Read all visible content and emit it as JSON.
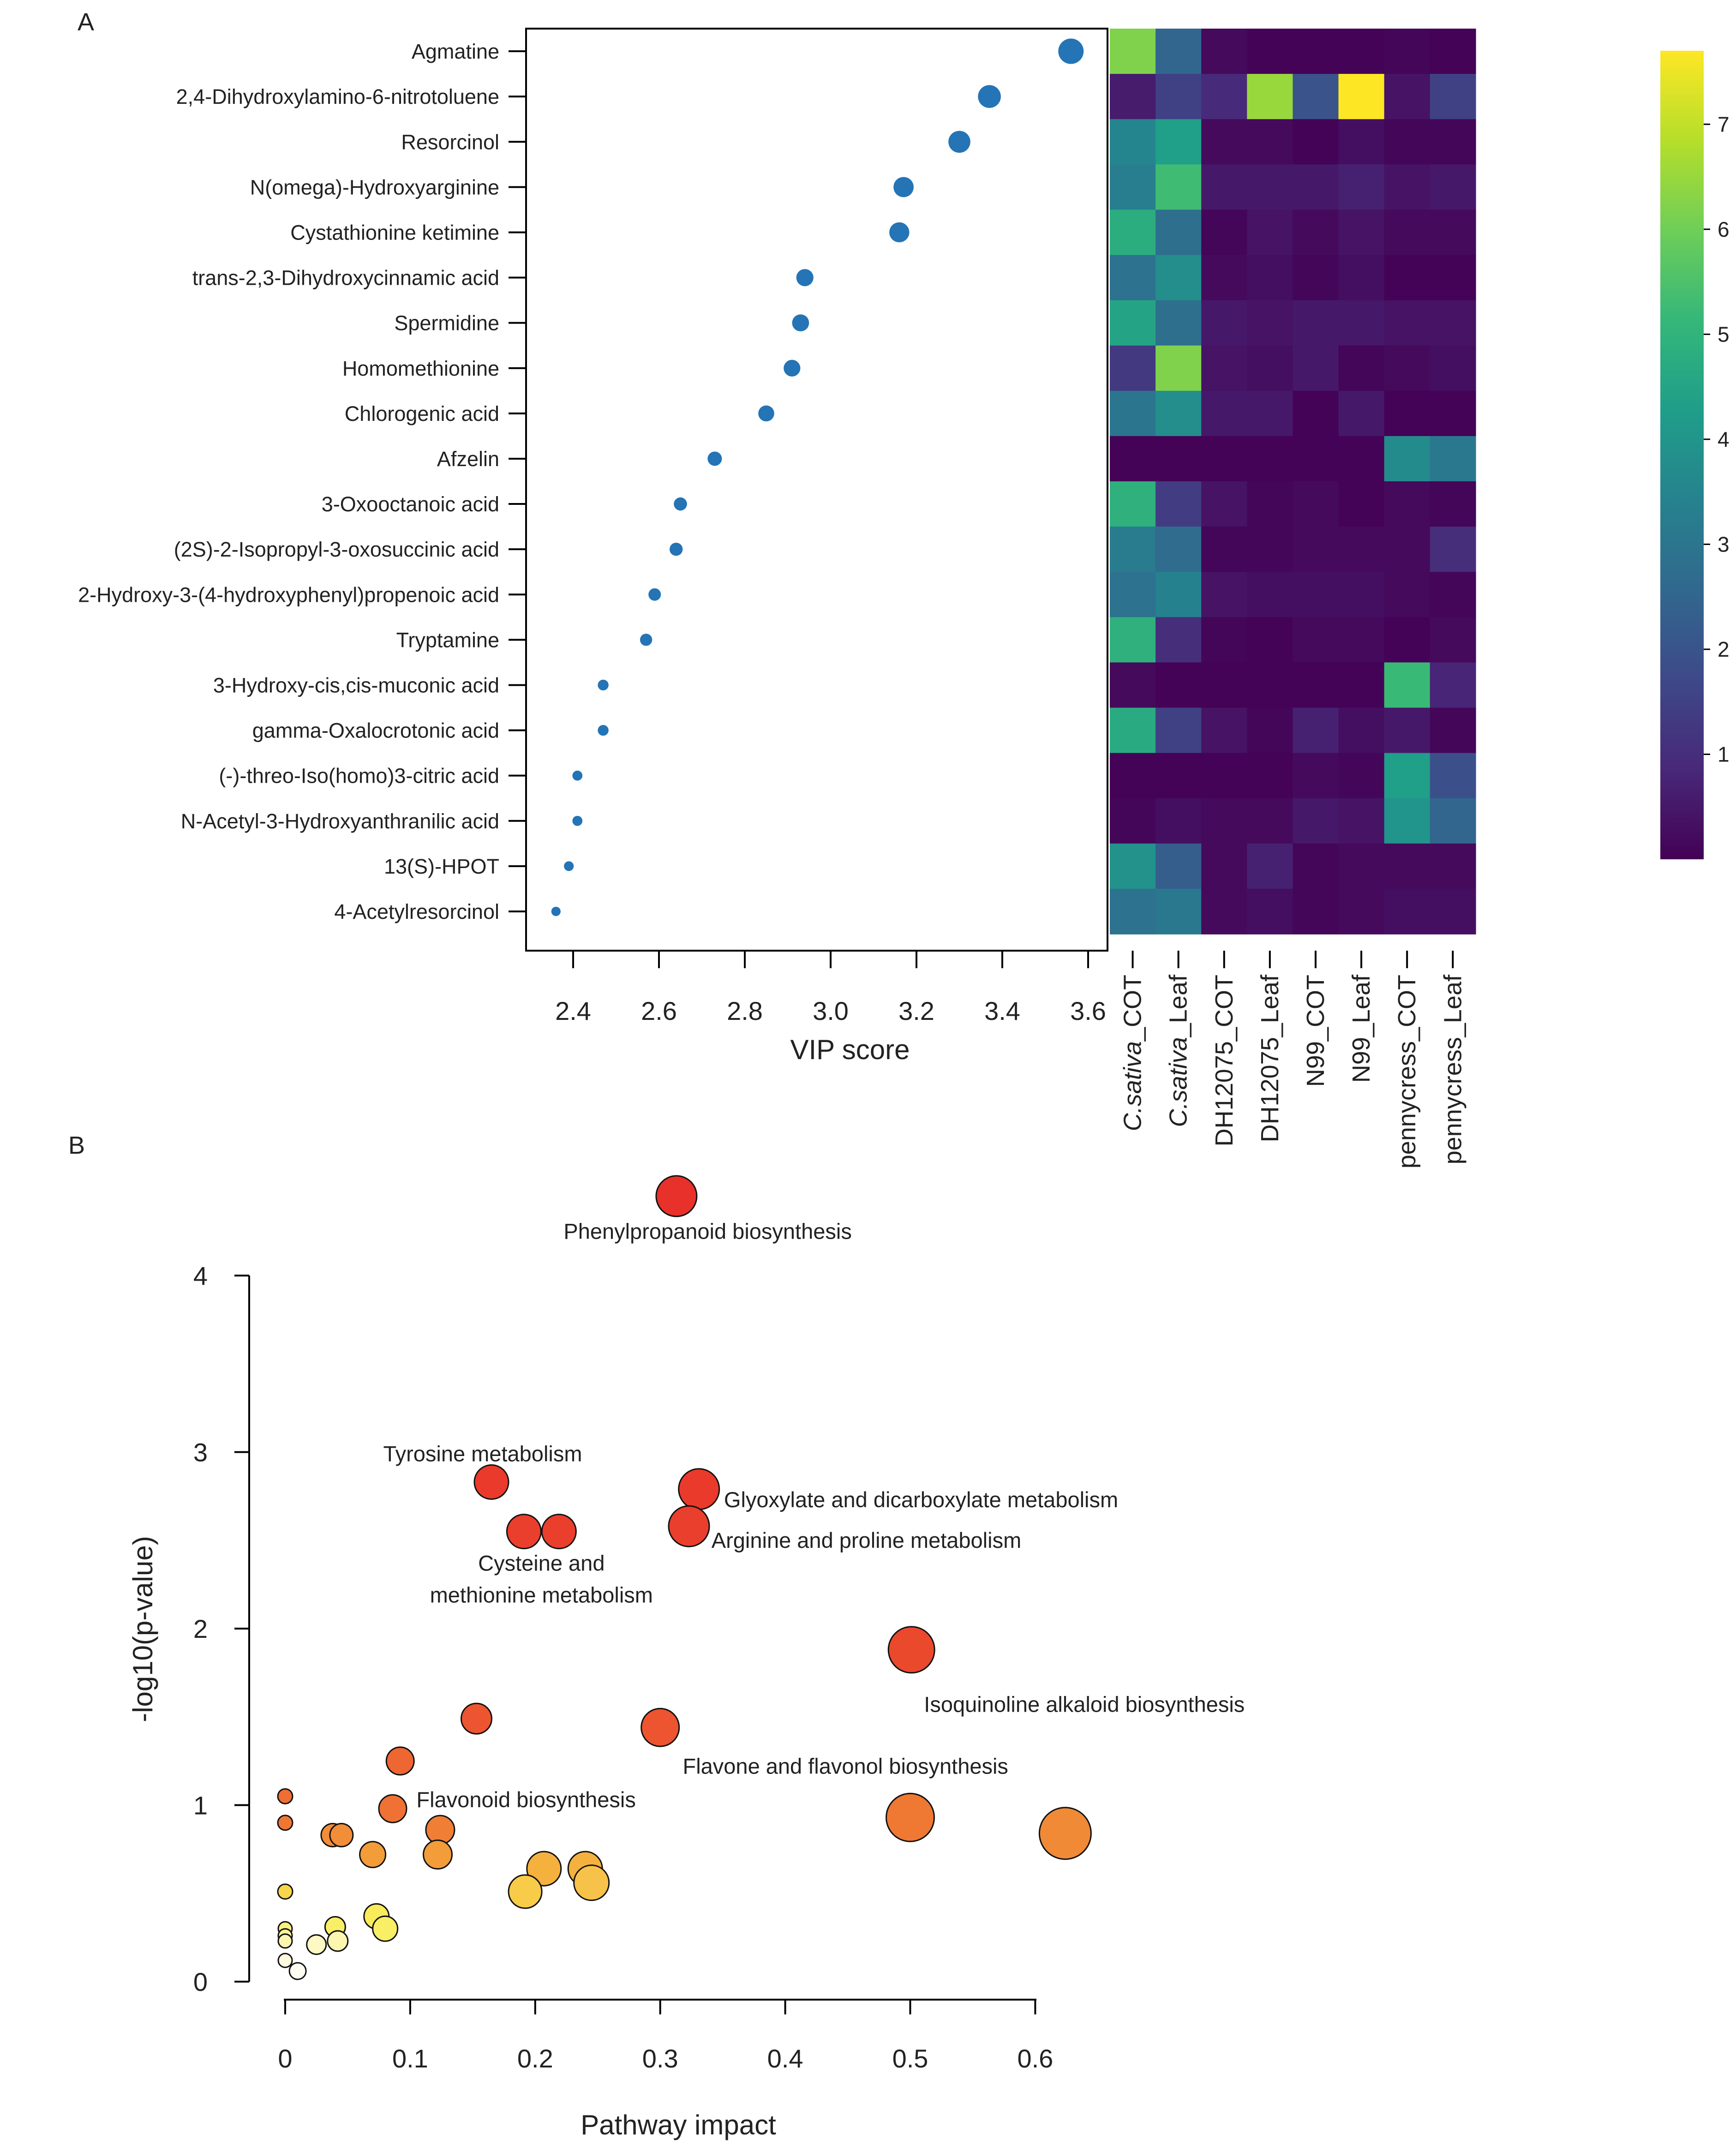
{
  "chart_data": [
    {
      "panel": "A",
      "type": "scatter",
      "subtype": "VIP score dot plot",
      "xlabel": "VIP score",
      "xticks": [
        "2.4",
        "2.6",
        "2.8",
        "3.0",
        "3.2",
        "3.4",
        "3.6"
      ],
      "xlim": [
        2.32,
        3.62
      ],
      "metabolites": [
        {
          "name": "Agmatine",
          "vip": 3.56
        },
        {
          "name": "2,4-Dihydroxylamino-6-nitrotoluene",
          "vip": 3.37
        },
        {
          "name": "Resorcinol",
          "vip": 3.3
        },
        {
          "name": "N(omega)-Hydroxyarginine",
          "vip": 3.17
        },
        {
          "name": "Cystathionine ketimine",
          "vip": 3.16
        },
        {
          "name": "trans-2,3-Dihydroxycinnamic acid",
          "vip": 2.94
        },
        {
          "name": "Spermidine",
          "vip": 2.93
        },
        {
          "name": "Homomethionine",
          "vip": 2.91
        },
        {
          "name": "Chlorogenic acid",
          "vip": 2.85
        },
        {
          "name": "Afzelin",
          "vip": 2.73
        },
        {
          "name": "3-Oxooctanoic acid",
          "vip": 2.65
        },
        {
          "name": "(2S)-2-Isopropyl-3-oxosuccinic acid",
          "vip": 2.64
        },
        {
          "name": "2-Hydroxy-3-(4-hydroxyphenyl)propenoic acid",
          "vip": 2.59
        },
        {
          "name": "Tryptamine",
          "vip": 2.57
        },
        {
          "name": "3-Hydroxy-cis,cis-muconic acid",
          "vip": 2.47
        },
        {
          "name": "gamma-Oxalocrotonic acid",
          "vip": 2.47
        },
        {
          "name": "(-)-threo-Iso(homo)3-citric acid",
          "vip": 2.41
        },
        {
          "name": "N-Acetyl-3-Hydroxyanthranilic acid",
          "vip": 2.41
        },
        {
          "name": "13(S)-HPOT",
          "vip": 2.39
        },
        {
          "name": "4-Acetylresorcinol",
          "vip": 2.36
        }
      ]
    },
    {
      "panel": "A",
      "type": "heatmap",
      "columns": [
        "C.sativa_COT",
        "C.sativa_Leaf",
        "DH12075_COT",
        "DH12075_Leaf",
        "N99_COT",
        "N99_Leaf",
        "pennycress_COT",
        "pennycress_Leaf"
      ],
      "columns_italic_prefix": [
        "C.sativa",
        "C.sativa",
        "",
        "",
        "",
        "",
        "",
        ""
      ],
      "columns_suffix": [
        "_COT",
        "_Leaf",
        "DH12075_COT",
        "DH12075_Leaf",
        "N99_COT",
        "N99_Leaf",
        "pennycress_COT",
        "pennycress_Leaf"
      ],
      "colorbar_ticks": [
        "1",
        "2",
        "3",
        "4",
        "5",
        "6",
        "7"
      ],
      "colorbar_range": [
        0,
        7.7
      ],
      "colormap": [
        "#440154",
        "#482878",
        "#3e4989",
        "#31688e",
        "#26828e",
        "#1f9e89",
        "#35b779",
        "#6ece58",
        "#b5de2b",
        "#fde725"
      ],
      "values": [
        [
          6.2,
          2.5,
          0.2,
          0.05,
          0.05,
          0.05,
          0.1,
          0.05
        ],
        [
          0.6,
          1.5,
          0.9,
          6.5,
          2.0,
          7.7,
          0.4,
          1.5
        ],
        [
          3.5,
          4.3,
          0.2,
          0.2,
          0.05,
          0.3,
          0.1,
          0.1
        ],
        [
          3.3,
          5.3,
          0.5,
          0.5,
          0.5,
          0.7,
          0.4,
          0.5
        ],
        [
          4.8,
          2.8,
          0.1,
          0.4,
          0.2,
          0.4,
          0.2,
          0.2
        ],
        [
          2.9,
          3.8,
          0.2,
          0.3,
          0.1,
          0.3,
          0.05,
          0.05
        ],
        [
          4.5,
          2.8,
          0.5,
          0.4,
          0.5,
          0.5,
          0.4,
          0.4
        ],
        [
          1.3,
          6.2,
          0.4,
          0.3,
          0.5,
          0.1,
          0.2,
          0.3
        ],
        [
          3.0,
          3.8,
          0.5,
          0.5,
          0.05,
          0.5,
          0.05,
          0.05
        ],
        [
          0.05,
          0.05,
          0.05,
          0.05,
          0.05,
          0.05,
          3.7,
          3.1
        ],
        [
          4.9,
          1.4,
          0.4,
          0.1,
          0.2,
          0.05,
          0.2,
          0.1
        ],
        [
          3.2,
          2.7,
          0.1,
          0.1,
          0.2,
          0.2,
          0.2,
          1.0
        ],
        [
          2.9,
          3.4,
          0.4,
          0.3,
          0.3,
          0.3,
          0.2,
          0.1
        ],
        [
          4.9,
          1.0,
          0.1,
          0.05,
          0.2,
          0.2,
          0.05,
          0.2
        ],
        [
          0.2,
          0.05,
          0.05,
          0.05,
          0.05,
          0.05,
          5.2,
          0.8
        ],
        [
          4.7,
          1.5,
          0.4,
          0.1,
          0.7,
          0.3,
          0.5,
          0.1
        ],
        [
          0.05,
          0.05,
          0.05,
          0.05,
          0.2,
          0.1,
          4.3,
          1.9
        ],
        [
          0.1,
          0.3,
          0.2,
          0.2,
          0.5,
          0.4,
          4.0,
          2.5
        ],
        [
          3.9,
          2.3,
          0.2,
          0.7,
          0.1,
          0.2,
          0.2,
          0.2
        ],
        [
          2.9,
          3.1,
          0.2,
          0.3,
          0.1,
          0.2,
          0.3,
          0.3
        ]
      ]
    },
    {
      "panel": "B",
      "type": "scatter",
      "subtype": "pathway bubble plot",
      "xlabel": "Pathway impact",
      "ylabel": "-log10(p-value)",
      "xticks": [
        "0",
        "0.1",
        "0.2",
        "0.3",
        "0.4",
        "0.5",
        "0.6"
      ],
      "yticks": [
        "0",
        "1",
        "2",
        "3",
        "4"
      ],
      "xlim": [
        0,
        0.6
      ],
      "ylim": [
        0,
        4
      ],
      "points": [
        {
          "x": 0.313,
          "y": 4.45,
          "r": 44,
          "color": "#e8312a"
        },
        {
          "x": 0.165,
          "y": 2.83,
          "r": 37,
          "color": "#e93a2b"
        },
        {
          "x": 0.331,
          "y": 2.79,
          "r": 44,
          "color": "#e93a2b"
        },
        {
          "x": 0.191,
          "y": 2.55,
          "r": 37,
          "color": "#ea3f2c"
        },
        {
          "x": 0.219,
          "y": 2.55,
          "r": 37,
          "color": "#ea3f2c"
        },
        {
          "x": 0.323,
          "y": 2.58,
          "r": 44,
          "color": "#ea3f2c"
        },
        {
          "x": 0.501,
          "y": 1.88,
          "r": 50,
          "color": "#ea492c"
        },
        {
          "x": 0.153,
          "y": 1.49,
          "r": 33,
          "color": "#ec5530"
        },
        {
          "x": 0.3,
          "y": 1.44,
          "r": 41,
          "color": "#ec5530"
        },
        {
          "x": 0.092,
          "y": 1.25,
          "r": 30,
          "color": "#ee6632"
        },
        {
          "x": 0.0,
          "y": 1.05,
          "r": 16,
          "color": "#ee6e33"
        },
        {
          "x": 0.0,
          "y": 0.9,
          "r": 16,
          "color": "#ef7734"
        },
        {
          "x": 0.086,
          "y": 0.98,
          "r": 30,
          "color": "#ef7234"
        },
        {
          "x": 0.124,
          "y": 0.86,
          "r": 31,
          "color": "#f07f35"
        },
        {
          "x": 0.5,
          "y": 0.93,
          "r": 52,
          "color": "#ef7833"
        },
        {
          "x": 0.624,
          "y": 0.84,
          "r": 56,
          "color": "#f18a36"
        },
        {
          "x": 0.038,
          "y": 0.83,
          "r": 25,
          "color": "#f28d38"
        },
        {
          "x": 0.045,
          "y": 0.83,
          "r": 25,
          "color": "#f28d38"
        },
        {
          "x": 0.07,
          "y": 0.72,
          "r": 28,
          "color": "#f39c3a"
        },
        {
          "x": 0.122,
          "y": 0.72,
          "r": 31,
          "color": "#f39c3a"
        },
        {
          "x": 0.207,
          "y": 0.64,
          "r": 37,
          "color": "#f5b13e"
        },
        {
          "x": 0.24,
          "y": 0.64,
          "r": 37,
          "color": "#f5b13e"
        },
        {
          "x": 0.245,
          "y": 0.56,
          "r": 38,
          "color": "#f7c24a"
        },
        {
          "x": 0.192,
          "y": 0.51,
          "r": 36,
          "color": "#f8cb49"
        },
        {
          "x": 0.0,
          "y": 0.51,
          "r": 16,
          "color": "#f8d64b"
        },
        {
          "x": 0.073,
          "y": 0.37,
          "r": 27,
          "color": "#f8ec5a"
        },
        {
          "x": 0.04,
          "y": 0.31,
          "r": 22,
          "color": "#f9ef66"
        },
        {
          "x": 0.08,
          "y": 0.3,
          "r": 27,
          "color": "#f9ef66"
        },
        {
          "x": 0.0,
          "y": 0.3,
          "r": 15,
          "color": "#faf07c"
        },
        {
          "x": 0.0,
          "y": 0.26,
          "r": 15,
          "color": "#fbf49a"
        },
        {
          "x": 0.0,
          "y": 0.23,
          "r": 15,
          "color": "#fcf6b0"
        },
        {
          "x": 0.025,
          "y": 0.21,
          "r": 21,
          "color": "#fdf8c4"
        },
        {
          "x": 0.042,
          "y": 0.23,
          "r": 22,
          "color": "#fcf6b0"
        },
        {
          "x": 0.0,
          "y": 0.12,
          "r": 15,
          "color": "#fefadf"
        },
        {
          "x": 0.01,
          "y": 0.06,
          "r": 18,
          "color": "#fffdf2"
        }
      ],
      "annotations": [
        {
          "label": "Phenylpropanoid biosynthesis",
          "x": 0.338,
          "y": 4.25,
          "anchor": "middle"
        },
        {
          "label": "Tyrosine metabolism",
          "x": 0.158,
          "y": 2.99,
          "anchor": "middle"
        },
        {
          "label": "Glyoxylate and dicarboxylate metabolism",
          "x": 0.351,
          "y": 2.73,
          "anchor": "start"
        },
        {
          "label": "Arginine and proline metabolism",
          "x": 0.341,
          "y": 2.5,
          "anchor": "start"
        },
        {
          "label": "Cysteine and",
          "x": 0.205,
          "y": 2.37,
          "anchor": "middle"
        },
        {
          "label": "methionine metabolism",
          "x": 0.205,
          "y": 2.19,
          "anchor": "middle"
        },
        {
          "label": "Isoquinoline alkaloid biosynthesis",
          "x": 0.511,
          "y": 1.57,
          "anchor": "start"
        },
        {
          "label": "Flavone and flavonol biosynthesis",
          "x": 0.318,
          "y": 1.22,
          "anchor": "start"
        },
        {
          "label": "Flavonoid biosynthesis",
          "x": 0.105,
          "y": 1.03,
          "anchor": "start"
        }
      ]
    }
  ],
  "panels": {
    "a": "A",
    "b": "B"
  }
}
